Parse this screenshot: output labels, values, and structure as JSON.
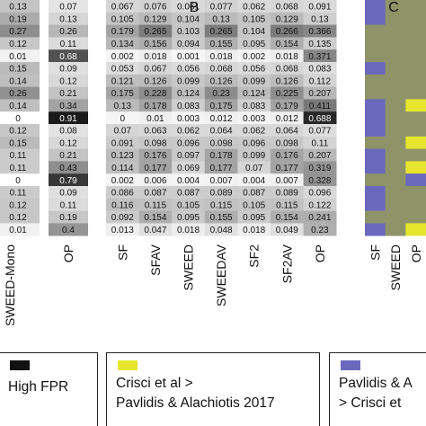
{
  "panel_labels": {
    "b": "B",
    "c": "C"
  },
  "chart_data": [
    {
      "type": "heatmap",
      "panel": "",
      "columns": [
        "SWEED-Mono",
        "OP"
      ],
      "values": [
        [
          0.13,
          0.07
        ],
        [
          0.19,
          0.13
        ],
        [
          0.27,
          0.26
        ],
        [
          0.12,
          0.11
        ],
        [
          0.01,
          0.68
        ],
        [
          0.15,
          0.09
        ],
        [
          0.14,
          0.12
        ],
        [
          0.26,
          0.21
        ],
        [
          0.14,
          0.34
        ],
        [
          0,
          0.91
        ],
        [
          0.12,
          0.08
        ],
        [
          0.15,
          0.12
        ],
        [
          0.11,
          0.21
        ],
        [
          0.11,
          0.43
        ],
        [
          0,
          0.79
        ],
        [
          0.11,
          0.09
        ],
        [
          0.12,
          0.11
        ],
        [
          0.12,
          0.19
        ],
        [
          0.01,
          0.4
        ]
      ],
      "labels": [
        [
          "0.13",
          "0.07"
        ],
        [
          "0.19",
          "0.13"
        ],
        [
          "0.27",
          "0.26"
        ],
        [
          "0.12",
          "0.11"
        ],
        [
          "0.01",
          "0.68"
        ],
        [
          "0.15",
          "0.09"
        ],
        [
          "0.14",
          "0.12"
        ],
        [
          "0.26",
          "0.21"
        ],
        [
          "0.14",
          "0.34"
        ],
        [
          "0",
          "0.91"
        ],
        [
          "0.12",
          "0.08"
        ],
        [
          "0.15",
          "0.12"
        ],
        [
          "0.11",
          "0.21"
        ],
        [
          "0.11",
          "0.43"
        ],
        [
          "0",
          "0.79"
        ],
        [
          "0.11",
          "0.09"
        ],
        [
          "0.12",
          "0.11"
        ],
        [
          "0.12",
          "0.19"
        ],
        [
          "0.01",
          "0.4"
        ]
      ]
    },
    {
      "type": "heatmap",
      "panel": "B",
      "columns": [
        "SF",
        "SFAV",
        "SWEED",
        "SWEEDAV",
        "SF2",
        "SF2AV",
        "OP"
      ],
      "values": [
        [
          0.067,
          0.076,
          0.061,
          0.077,
          0.062,
          0.068,
          0.091
        ],
        [
          0.105,
          0.129,
          0.104,
          0.13,
          0.105,
          0.129,
          0.13
        ],
        [
          0.179,
          0.265,
          0.103,
          0.265,
          0.104,
          0.266,
          0.366
        ],
        [
          0.134,
          0.156,
          0.094,
          0.155,
          0.095,
          0.154,
          0.135
        ],
        [
          0.002,
          0.018,
          0.001,
          0.018,
          0.002,
          0.018,
          0.371
        ],
        [
          0.053,
          0.067,
          0.056,
          0.068,
          0.056,
          0.068,
          0.083
        ],
        [
          0.121,
          0.126,
          0.099,
          0.126,
          0.099,
          0.126,
          0.112
        ],
        [
          0.175,
          0.228,
          0.124,
          0.23,
          0.124,
          0.225,
          0.207
        ],
        [
          0.13,
          0.178,
          0.083,
          0.175,
          0.083,
          0.179,
          0.411
        ],
        [
          0,
          0.01,
          0.003,
          0.012,
          0.003,
          0.012,
          0.688
        ],
        [
          0.07,
          0.063,
          0.062,
          0.064,
          0.062,
          0.064,
          0.077
        ],
        [
          0.091,
          0.098,
          0.096,
          0.098,
          0.096,
          0.098,
          0.11
        ],
        [
          0.123,
          0.176,
          0.097,
          0.178,
          0.099,
          0.176,
          0.207
        ],
        [
          0.114,
          0.177,
          0.069,
          0.177,
          0.07,
          0.177,
          0.319
        ],
        [
          0.002,
          0.006,
          0.004,
          0.007,
          0.004,
          0.007,
          0.328
        ],
        [
          0.086,
          0.087,
          0.087,
          0.089,
          0.087,
          0.089,
          0.096
        ],
        [
          0.116,
          0.115,
          0.105,
          0.115,
          0.105,
          0.115,
          0.122
        ],
        [
          0.092,
          0.154,
          0.095,
          0.155,
          0.095,
          0.154,
          0.241
        ],
        [
          0.013,
          0.047,
          0.018,
          0.048,
          0.018,
          0.049,
          0.23
        ]
      ],
      "labels": [
        [
          "0.067",
          "0.076",
          "0.061",
          "0.077",
          "0.062",
          "0.068",
          "0.091"
        ],
        [
          "0.105",
          "0.129",
          "0.104",
          "0.13",
          "0.105",
          "0.129",
          "0.13"
        ],
        [
          "0.179",
          "0.265",
          "0.103",
          "0.265",
          "0.104",
          "0.266",
          "0.366"
        ],
        [
          "0.134",
          "0.156",
          "0.094",
          "0.155",
          "0.095",
          "0.154",
          "0.135"
        ],
        [
          "0.002",
          "0.018",
          "0.001",
          "0.018",
          "0.002",
          "0.018",
          "0.371"
        ],
        [
          "0.053",
          "0.067",
          "0.056",
          "0.068",
          "0.056",
          "0.068",
          "0.083"
        ],
        [
          "0.121",
          "0.126",
          "0.099",
          "0.126",
          "0.099",
          "0.126",
          "0.112"
        ],
        [
          "0.175",
          "0.228",
          "0.124",
          "0.23",
          "0.124",
          "0.225",
          "0.207"
        ],
        [
          "0.13",
          "0.178",
          "0.083",
          "0.175",
          "0.083",
          "0.179",
          "0.411"
        ],
        [
          "0",
          "0.01",
          "0.003",
          "0.012",
          "0.003",
          "0.012",
          "0.688"
        ],
        [
          "0.07",
          "0.063",
          "0.062",
          "0.064",
          "0.062",
          "0.064",
          "0.077"
        ],
        [
          "0.091",
          "0.098",
          "0.096",
          "0.098",
          "0.096",
          "0.098",
          "0.11"
        ],
        [
          "0.123",
          "0.176",
          "0.097",
          "0.178",
          "0.099",
          "0.176",
          "0.207"
        ],
        [
          "0.114",
          "0.177",
          "0.069",
          "0.177",
          "0.07",
          "0.177",
          "0.319"
        ],
        [
          "0.002",
          "0.006",
          "0.004",
          "0.007",
          "0.004",
          "0.007",
          "0.328"
        ],
        [
          "0.086",
          "0.087",
          "0.087",
          "0.089",
          "0.087",
          "0.089",
          "0.096"
        ],
        [
          "0.116",
          "0.115",
          "0.105",
          "0.115",
          "0.105",
          "0.115",
          "0.122"
        ],
        [
          "0.092",
          "0.154",
          "0.095",
          "0.155",
          "0.095",
          "0.154",
          "0.241"
        ],
        [
          "0.013",
          "0.047",
          "0.018",
          "0.048",
          "0.018",
          "0.049",
          "0.23"
        ]
      ]
    },
    {
      "type": "heatmap",
      "panel": "C",
      "columns": [
        "SF",
        "SWEED",
        "OP"
      ],
      "values": [
        [
          "blue",
          "mix",
          "mix"
        ],
        [
          "blue",
          "mix",
          "mix"
        ],
        [
          "mix",
          "mix",
          "mix"
        ],
        [
          "mix",
          "mix",
          "mix"
        ],
        [
          "mix",
          "mix",
          "mix"
        ],
        [
          "blue",
          "mix",
          "mix"
        ],
        [
          "mix",
          "mix",
          "mix"
        ],
        [
          "mix",
          "mix",
          "mix"
        ],
        [
          "blue",
          "mix",
          "yellow"
        ],
        [
          "blue",
          "mix",
          "mix"
        ],
        [
          "blue",
          "mix",
          "mix"
        ],
        [
          "mix",
          "mix",
          "yellow"
        ],
        [
          "blue",
          "mix",
          "mix"
        ],
        [
          "blue",
          "mix",
          "yellow"
        ],
        [
          "mix",
          "mix",
          "blue"
        ],
        [
          "blue",
          "mix",
          "mix"
        ],
        [
          "blue",
          "mix",
          "mix"
        ],
        [
          "mix",
          "mix",
          "mix"
        ],
        [
          "blue",
          "mix",
          "yellow"
        ]
      ]
    }
  ],
  "colors": {
    "high_fpr": "#111111",
    "yellow": "#e6e62e",
    "blue": "#6a68bd",
    "mix": "#8f9468"
  },
  "legend": [
    {
      "color": "#111111",
      "lines": [
        "High FPR"
      ]
    },
    {
      "color": "#e6e62e",
      "lines": [
        "Crisci et al >",
        "Pavlidis & Alachiotis 2017"
      ]
    },
    {
      "color": "#6a68bd",
      "lines": [
        "Pavlidis & A",
        "> Crisci et"
      ]
    }
  ]
}
